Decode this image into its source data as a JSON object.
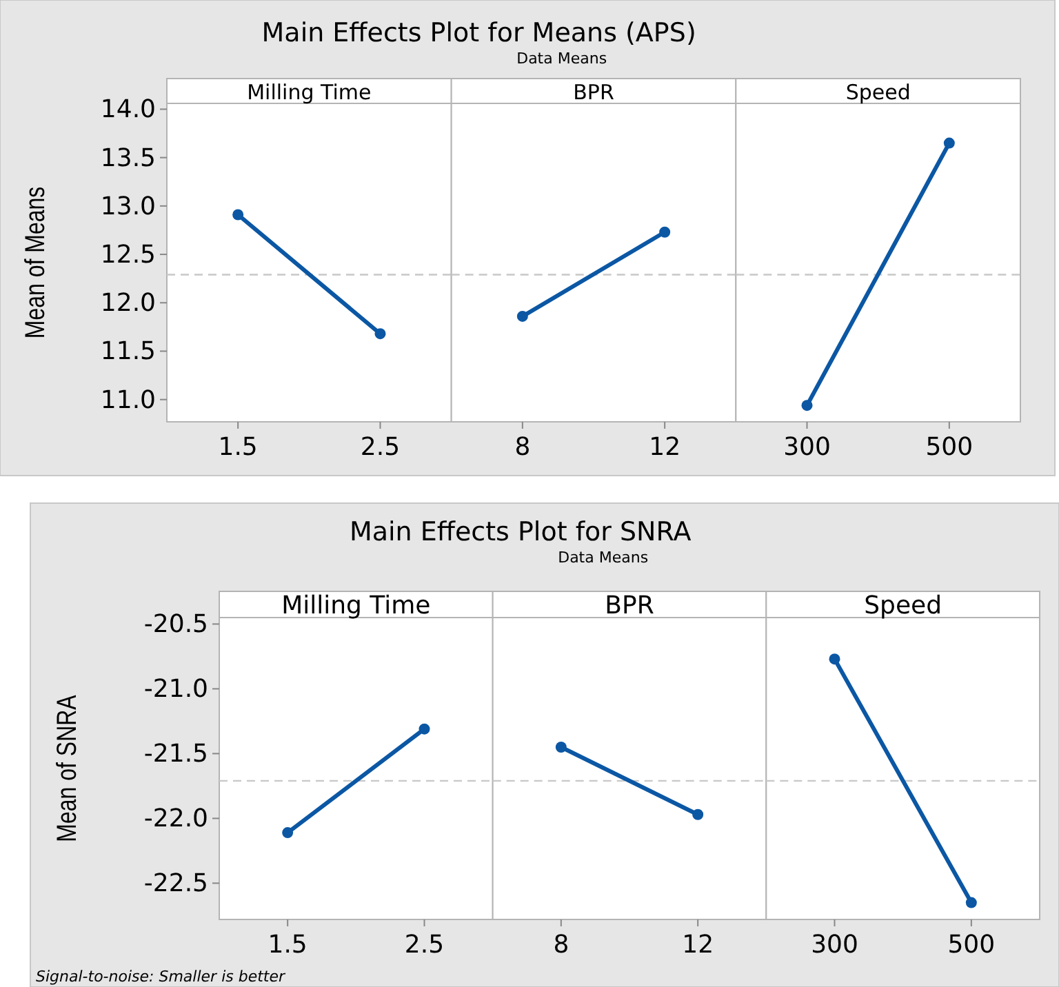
{
  "chart_data": [
    {
      "type": "line",
      "xlabel": "Milling Time",
      "ylabel": "Mean of Means",
      "categories": [
        "1.5",
        "2.5"
      ],
      "series": [
        {
          "color": "#0b57a4",
          "values": [
            12.91,
            11.68
          ]
        }
      ],
      "marker": "circle",
      "ylim": [
        10.77,
        14.06
      ],
      "yticks": [
        {
          "value": 11,
          "label": "11.0"
        },
        11.5,
        {
          "value": 12,
          "label": "12.0"
        },
        12.5,
        {
          "value": 13,
          "label": "13.0"
        },
        13.5,
        {
          "value": 14,
          "label": "14.0"
        }
      ],
      "ref_lines": [
        {
          "axis": "y",
          "value": 12.29,
          "color": "#c8c8c8",
          "line_style": "dashed"
        }
      ]
    },
    {
      "type": "line",
      "title": "Main Effects Plot for Means (APS)",
      "subtitle": "Data Means",
      "xlabel": "BPR",
      "categories": [
        "8",
        "12"
      ],
      "series": [
        {
          "color": "#0b57a4",
          "values": [
            11.86,
            12.73
          ]
        }
      ],
      "marker": "circle",
      "ylim": [
        10.77,
        14.06
      ],
      "tick_labels": "x",
      "ref_lines": [
        {
          "axis": "y",
          "value": 12.29,
          "color": "#c8c8c8",
          "line_style": "dashed"
        }
      ]
    },
    {
      "type": "line",
      "xlabel": "Speed",
      "categories": [
        "300",
        "500"
      ],
      "series": [
        {
          "color": "#0b57a4",
          "values": [
            10.94,
            13.65
          ]
        }
      ],
      "marker": "circle",
      "ylim": [
        10.77,
        14.06
      ],
      "tick_labels": "x",
      "ref_lines": [
        {
          "axis": "y",
          "value": 12.29,
          "color": "#c8c8c8",
          "line_style": "dashed"
        }
      ]
    },
    {
      "type": "line",
      "xlabel": "Milling Time",
      "ylabel": "Mean of SNRA",
      "categories": [
        "1.5",
        "2.5"
      ],
      "series": [
        {
          "color": "#0b57a4",
          "values": [
            -22.11,
            -21.31
          ]
        }
      ],
      "marker": "circle",
      "ylim": [
        -22.78,
        -20.45
      ],
      "yticks": [
        -22.5,
        {
          "value": -22,
          "label": "-22.0"
        },
        -21.5,
        {
          "value": -21,
          "label": "-21.0"
        },
        -20.5
      ],
      "ref_lines": [
        {
          "axis": "y",
          "value": -21.71,
          "color": "#c8c8c8",
          "line_style": "dashed"
        }
      ],
      "annotations": [
        "Signal-to-noise: Smaller is better"
      ]
    },
    {
      "type": "line",
      "title": "Main Effects Plot for SNRA",
      "subtitle": "Data Means",
      "xlabel": "BPR",
      "categories": [
        "8",
        "12"
      ],
      "series": [
        {
          "color": "#0b57a4",
          "values": [
            -21.45,
            -21.97
          ]
        }
      ],
      "marker": "circle",
      "ylim": [
        -22.78,
        -20.45
      ],
      "tick_labels": "x",
      "ref_lines": [
        {
          "axis": "y",
          "value": -21.71,
          "color": "#c8c8c8",
          "line_style": "dashed"
        }
      ]
    },
    {
      "type": "line",
      "xlabel": "Speed",
      "categories": [
        "300",
        "500"
      ],
      "series": [
        {
          "color": "#0b57a4",
          "values": [
            -20.77,
            -22.65
          ]
        }
      ],
      "marker": "circle",
      "ylim": [
        -22.78,
        -20.45
      ],
      "tick_labels": "x",
      "ref_lines": [
        {
          "axis": "y",
          "value": -21.71,
          "color": "#c8c8c8",
          "line_style": "dashed"
        }
      ]
    }
  ]
}
